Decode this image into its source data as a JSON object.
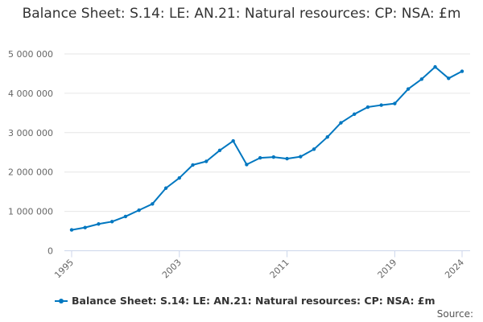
{
  "chart_data": {
    "type": "line",
    "title": "Balance Sheet: S.14: LE: AN.21: Natural resources: CP: NSA: £m",
    "xlabel": "",
    "ylabel": "",
    "x": [
      1995,
      1996,
      1997,
      1998,
      1999,
      2000,
      2001,
      2002,
      2003,
      2004,
      2005,
      2006,
      2007,
      2008,
      2009,
      2010,
      2011,
      2012,
      2013,
      2014,
      2015,
      2016,
      2017,
      2018,
      2019,
      2020,
      2021,
      2022,
      2023,
      2024
    ],
    "series": [
      {
        "name": "Balance Sheet: S.14: LE: AN.21: Natural resources: CP: NSA: £m",
        "color": "#0077c0",
        "values": [
          530000,
          590000,
          680000,
          740000,
          870000,
          1030000,
          1190000,
          1590000,
          1850000,
          2180000,
          2270000,
          2550000,
          2790000,
          2190000,
          2360000,
          2380000,
          2340000,
          2390000,
          2580000,
          2890000,
          3250000,
          3470000,
          3650000,
          3700000,
          3740000,
          4110000,
          4360000,
          4670000,
          4380000,
          4560000
        ]
      }
    ],
    "xticks": [
      "1995",
      "2003",
      "2011",
      "2019",
      "2024"
    ],
    "yticks": [
      "0",
      "1 000 000",
      "2 000 000",
      "3 000 000",
      "4 000 000",
      "5 000 000"
    ],
    "ylim": [
      0,
      5000000
    ],
    "xlim": [
      1995,
      2024
    ],
    "grid": true,
    "legend_position": "bottom"
  },
  "source_label": "Source:"
}
